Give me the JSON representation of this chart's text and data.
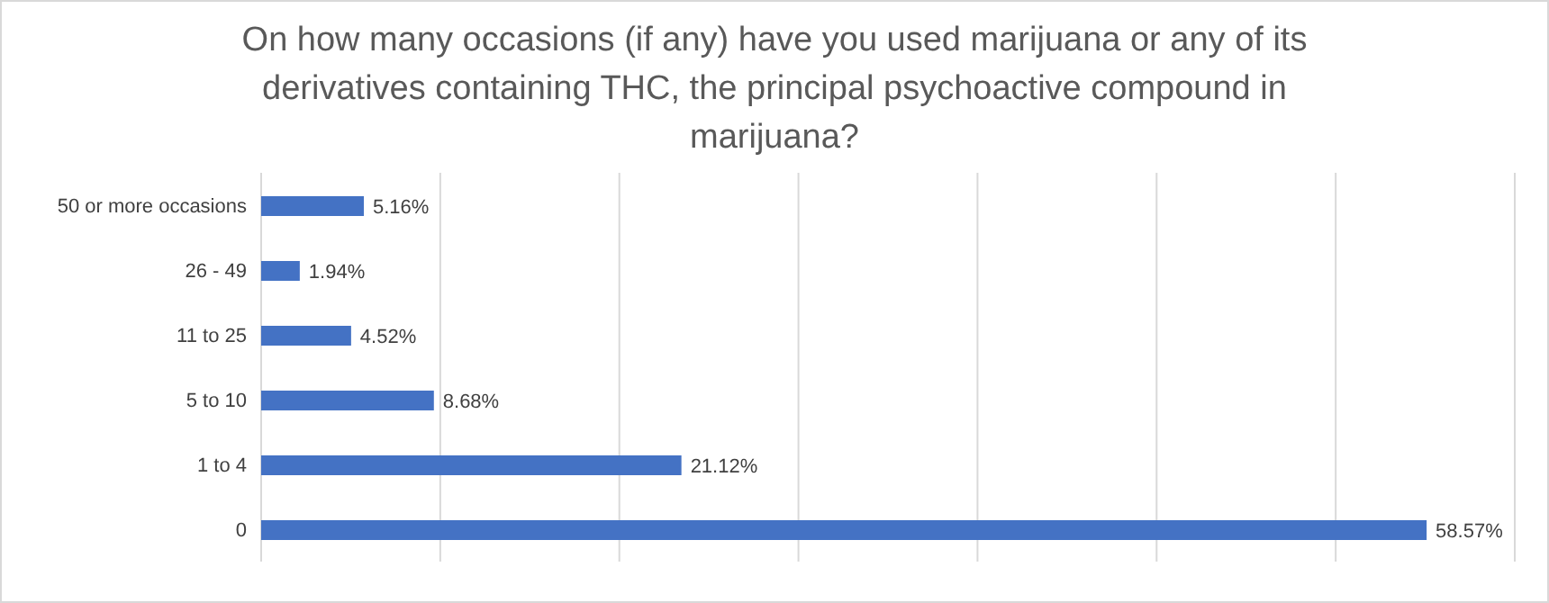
{
  "chart_data": {
    "type": "bar",
    "orientation": "horizontal",
    "title": "On how many occasions (if any) have you used marijuana or any of its derivatives containing THC, the principal psychoactive compound in marijuana?",
    "categories": [
      "50 or more occasions",
      "26 - 49",
      "11 to 25",
      "5 to 10",
      "1 to 4",
      "0"
    ],
    "values": [
      5.16,
      1.94,
      4.52,
      8.68,
      21.12,
      58.57
    ],
    "value_labels": [
      "5.16%",
      "1.94%",
      "4.52%",
      "8.68%",
      "21.12%",
      "58.57%"
    ],
    "color": "#4472c4",
    "grid": "x",
    "tick_labels": "y"
  }
}
